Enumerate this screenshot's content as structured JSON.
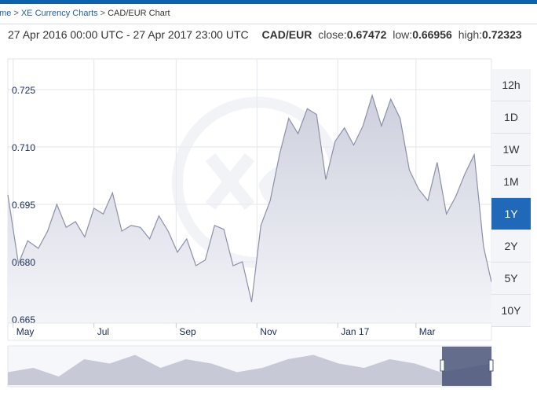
{
  "breadcrumb": {
    "items": [
      {
        "label": "Home",
        "display": "ome"
      },
      {
        "label": "XE Currency Charts"
      },
      {
        "label": "CAD/EUR Chart"
      }
    ]
  },
  "summary": {
    "range": "27 Apr 2016 00:00 UTC - 27 Apr 2017 23:00 UTC",
    "pair": "CAD/EUR",
    "close_label": "close:",
    "close": "0.67472",
    "low_label": "low:",
    "low": "0.66956",
    "high_label": "high:",
    "high": "0.72323"
  },
  "tabs": [
    {
      "label": "12h",
      "active": false
    },
    {
      "label": "1D",
      "active": false
    },
    {
      "label": "1W",
      "active": false
    },
    {
      "label": "1M",
      "active": false
    },
    {
      "label": "1Y",
      "active": true
    },
    {
      "label": "2Y",
      "active": false
    },
    {
      "label": "5Y",
      "active": false
    },
    {
      "label": "10Y",
      "active": false
    }
  ],
  "colors": {
    "accent": "#1f69b8",
    "series_line": "#8a90a8",
    "series_fill_top": "#cdd0dd",
    "series_fill_bottom": "#f4f5f9",
    "grid": "#e3e6ee",
    "axis_label": "#1a2a5a",
    "navigator_fill": "#c7cad6",
    "navigator_window": "#4a5578"
  },
  "icons": [
    "xe-watermark"
  ],
  "chart_data": {
    "type": "area",
    "title": "CAD/EUR",
    "y_tick_labels": [
      "0.725",
      "0.710",
      "0.695",
      "0.680",
      "0.665"
    ],
    "ylim": [
      0.664,
      0.733
    ],
    "x_tick_labels": [
      "May",
      "Jul",
      "Sep",
      "Nov",
      "Jan 17",
      "Mar"
    ],
    "grid": true,
    "series": [
      {
        "name": "CAD/EUR",
        "x": [
          "2016-04-27",
          "2016-05-05",
          "2016-05-12",
          "2016-05-20",
          "2016-05-27",
          "2016-06-03",
          "2016-06-10",
          "2016-06-17",
          "2016-06-24",
          "2016-07-01",
          "2016-07-08",
          "2016-07-15",
          "2016-07-22",
          "2016-07-29",
          "2016-08-05",
          "2016-08-12",
          "2016-08-19",
          "2016-08-26",
          "2016-09-02",
          "2016-09-09",
          "2016-09-16",
          "2016-09-23",
          "2016-09-30",
          "2016-10-07",
          "2016-10-14",
          "2016-10-21",
          "2016-10-28",
          "2016-11-04",
          "2016-11-11",
          "2016-11-18",
          "2016-11-25",
          "2016-12-02",
          "2016-12-09",
          "2016-12-16",
          "2016-12-23",
          "2016-12-30",
          "2017-01-06",
          "2017-01-13",
          "2017-01-20",
          "2017-01-27",
          "2017-02-03",
          "2017-02-10",
          "2017-02-17",
          "2017-02-24",
          "2017-03-03",
          "2017-03-10",
          "2017-03-17",
          "2017-03-24",
          "2017-03-31",
          "2017-04-07",
          "2017-04-14",
          "2017-04-21",
          "2017-04-27"
        ],
        "values": [
          0.6975,
          0.6795,
          0.6855,
          0.6835,
          0.688,
          0.695,
          0.689,
          0.6905,
          0.6865,
          0.694,
          0.6925,
          0.698,
          0.688,
          0.6895,
          0.689,
          0.686,
          0.692,
          0.688,
          0.6825,
          0.686,
          0.679,
          0.6805,
          0.6895,
          0.6885,
          0.679,
          0.68,
          0.6695,
          0.6895,
          0.696,
          0.708,
          0.7175,
          0.7135,
          0.72,
          0.7185,
          0.7015,
          0.7115,
          0.715,
          0.7105,
          0.7155,
          0.7235,
          0.7155,
          0.7225,
          0.7175,
          0.704,
          0.699,
          0.696,
          0.706,
          0.6925,
          0.697,
          0.703,
          0.708,
          0.684,
          0.6747
        ]
      }
    ],
    "navigator": {
      "selected_range": [
        "2016-04-27",
        "2017-04-27"
      ]
    }
  }
}
